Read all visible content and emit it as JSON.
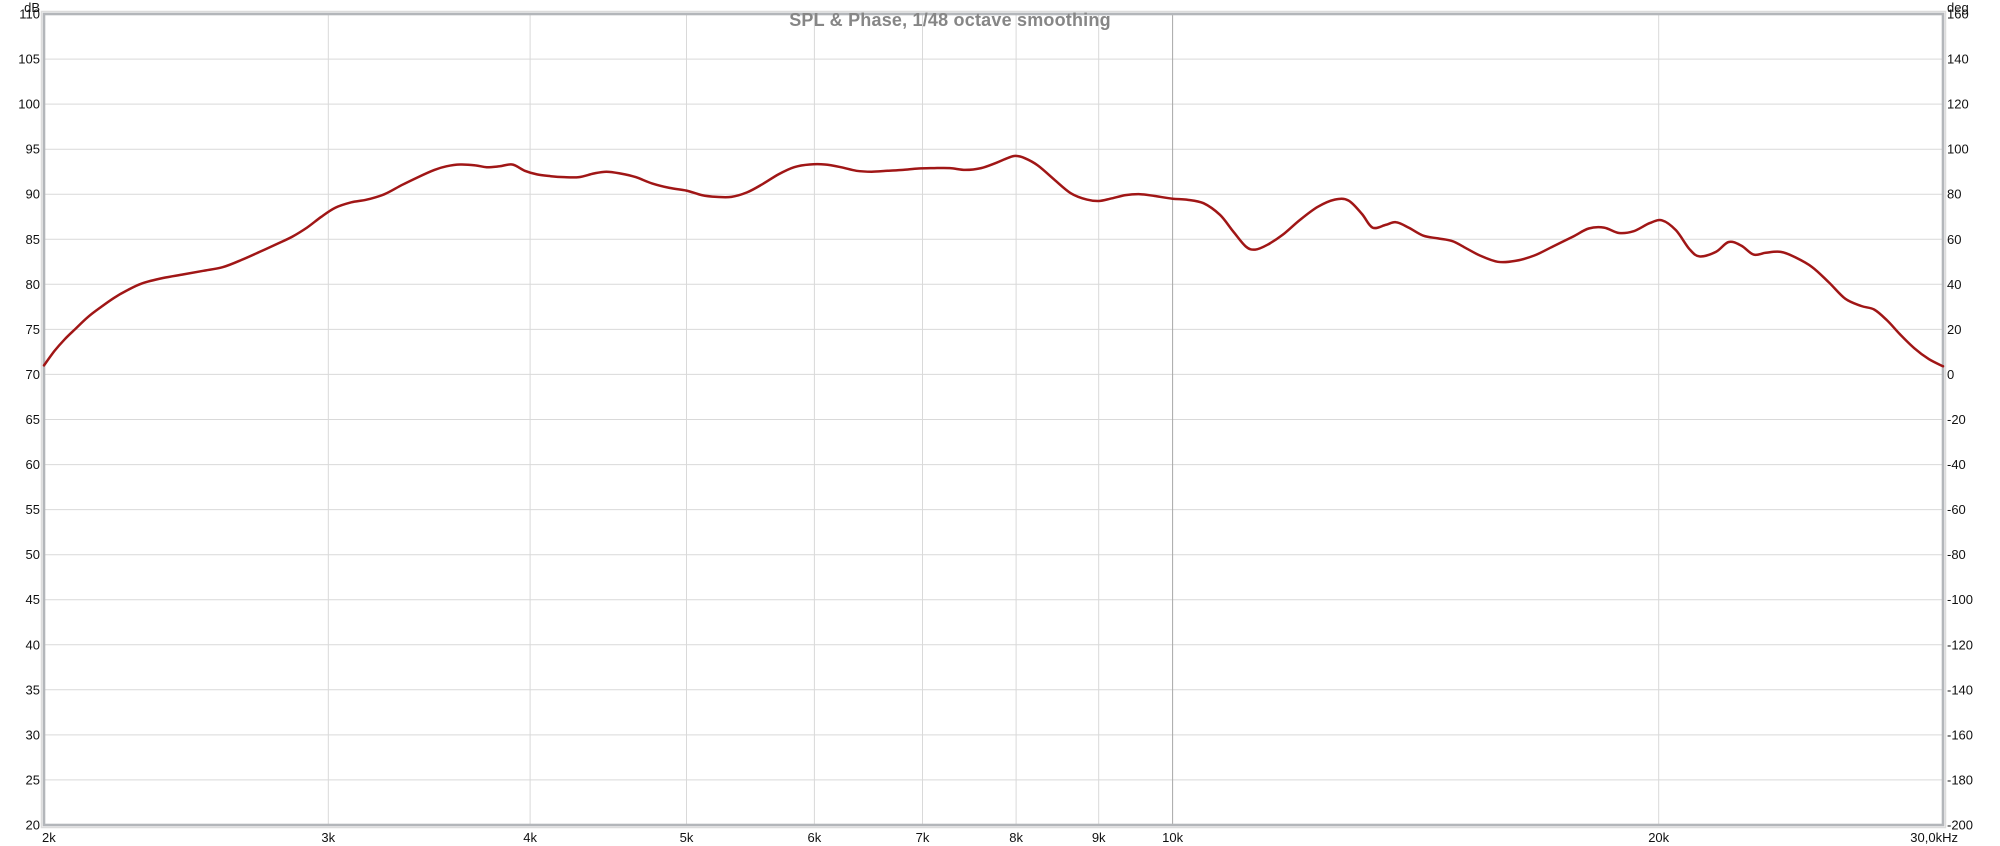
{
  "page": {
    "background": "#ffffff"
  },
  "header": {
    "title": "SPL & Phase, 1/48 octave smoothing"
  },
  "chart_data": {
    "type": "line",
    "title": "SPL & Phase, 1/48 octave smoothing",
    "smoothing": "1/48 octave",
    "grid": {
      "on": true,
      "light": "#d9d9d9",
      "dark": "#a8a8a8",
      "border": "#b3b6ba",
      "border_outer": "#dcdcdc"
    },
    "text_color": "#111111",
    "title_color": "#868686",
    "x_axis": {
      "scale": "log",
      "min": 2000,
      "max": 30000,
      "ticks": [
        {
          "f": 2000,
          "label": "2k",
          "align": "start"
        },
        {
          "f": 3000,
          "label": "3k"
        },
        {
          "f": 4000,
          "label": "4k"
        },
        {
          "f": 5000,
          "label": "5k"
        },
        {
          "f": 6000,
          "label": "6k"
        },
        {
          "f": 7000,
          "label": "7k"
        },
        {
          "f": 8000,
          "label": "8k"
        },
        {
          "f": 9000,
          "label": "9k"
        },
        {
          "f": 10000,
          "label": "10k",
          "emphasis": true
        },
        {
          "f": 20000,
          "label": "20k"
        },
        {
          "f": 30000,
          "label": "30,0kHz",
          "align": "end"
        }
      ]
    },
    "y_left": {
      "unit": "dB",
      "min": 20,
      "max": 110,
      "tick_step": 5,
      "ticks": [
        110,
        105,
        100,
        95,
        90,
        85,
        80,
        75,
        70,
        65,
        60,
        55,
        50,
        45,
        40,
        35,
        30,
        25,
        20
      ]
    },
    "y_right": {
      "unit": "deg",
      "min": -200,
      "max": 160,
      "tick_step": 20,
      "ticks": [
        160,
        140,
        120,
        100,
        80,
        60,
        40,
        20,
        0,
        -20,
        -40,
        -60,
        -80,
        -100,
        -120,
        -140,
        -160,
        -180,
        -200
      ]
    },
    "series": [
      {
        "name": "SPL",
        "color": "#a01616",
        "width": 2.5,
        "points": [
          [
            2000,
            71.0
          ],
          [
            2030,
            72.6
          ],
          [
            2060,
            73.9
          ],
          [
            2090,
            75.0
          ],
          [
            2130,
            76.4
          ],
          [
            2170,
            77.5
          ],
          [
            2210,
            78.5
          ],
          [
            2250,
            79.3
          ],
          [
            2300,
            80.1
          ],
          [
            2370,
            80.7
          ],
          [
            2440,
            81.1
          ],
          [
            2510,
            81.5
          ],
          [
            2580,
            81.9
          ],
          [
            2650,
            82.7
          ],
          [
            2720,
            83.6
          ],
          [
            2790,
            84.5
          ],
          [
            2850,
            85.3
          ],
          [
            2910,
            86.3
          ],
          [
            2970,
            87.5
          ],
          [
            3030,
            88.5
          ],
          [
            3100,
            89.1
          ],
          [
            3170,
            89.4
          ],
          [
            3250,
            90.0
          ],
          [
            3330,
            91.0
          ],
          [
            3410,
            91.9
          ],
          [
            3490,
            92.7
          ],
          [
            3550,
            93.1
          ],
          [
            3620,
            93.3
          ],
          [
            3700,
            93.2
          ],
          [
            3760,
            93.0
          ],
          [
            3830,
            93.1
          ],
          [
            3900,
            93.3
          ],
          [
            3970,
            92.6
          ],
          [
            4040,
            92.2
          ],
          [
            4120,
            92.0
          ],
          [
            4200,
            91.9
          ],
          [
            4290,
            91.9
          ],
          [
            4380,
            92.3
          ],
          [
            4460,
            92.5
          ],
          [
            4550,
            92.3
          ],
          [
            4650,
            91.9
          ],
          [
            4760,
            91.2
          ],
          [
            4880,
            90.7
          ],
          [
            5000,
            90.4
          ],
          [
            5110,
            89.9
          ],
          [
            5220,
            89.7
          ],
          [
            5330,
            89.7
          ],
          [
            5450,
            90.2
          ],
          [
            5570,
            91.1
          ],
          [
            5700,
            92.2
          ],
          [
            5830,
            93.0
          ],
          [
            5960,
            93.3
          ],
          [
            6090,
            93.3
          ],
          [
            6230,
            93.0
          ],
          [
            6370,
            92.6
          ],
          [
            6510,
            92.5
          ],
          [
            6660,
            92.6
          ],
          [
            6810,
            92.7
          ],
          [
            6960,
            92.85
          ],
          [
            7120,
            92.9
          ],
          [
            7280,
            92.9
          ],
          [
            7440,
            92.7
          ],
          [
            7610,
            92.9
          ],
          [
            7780,
            93.5
          ],
          [
            7900,
            94.0
          ],
          [
            7990,
            94.25
          ],
          [
            8100,
            94.0
          ],
          [
            8250,
            93.2
          ],
          [
            8450,
            91.6
          ],
          [
            8650,
            90.1
          ],
          [
            8850,
            89.4
          ],
          [
            9000,
            89.25
          ],
          [
            9150,
            89.5
          ],
          [
            9350,
            89.9
          ],
          [
            9550,
            90.0
          ],
          [
            9750,
            89.8
          ],
          [
            10000,
            89.5
          ],
          [
            10200,
            89.4
          ],
          [
            10450,
            89.0
          ],
          [
            10700,
            87.7
          ],
          [
            10900,
            85.9
          ],
          [
            11100,
            84.2
          ],
          [
            11250,
            83.85
          ],
          [
            11450,
            84.4
          ],
          [
            11700,
            85.5
          ],
          [
            12000,
            87.2
          ],
          [
            12300,
            88.6
          ],
          [
            12600,
            89.4
          ],
          [
            12850,
            89.3
          ],
          [
            13100,
            87.8
          ],
          [
            13300,
            86.3
          ],
          [
            13550,
            86.6
          ],
          [
            13750,
            86.9
          ],
          [
            14000,
            86.3
          ],
          [
            14300,
            85.4
          ],
          [
            14600,
            85.1
          ],
          [
            14900,
            84.8
          ],
          [
            15200,
            84.0
          ],
          [
            15500,
            83.2
          ],
          [
            15900,
            82.5
          ],
          [
            16300,
            82.6
          ],
          [
            16750,
            83.2
          ],
          [
            17200,
            84.2
          ],
          [
            17700,
            85.3
          ],
          [
            18100,
            86.2
          ],
          [
            18500,
            86.3
          ],
          [
            18900,
            85.7
          ],
          [
            19300,
            85.9
          ],
          [
            19750,
            86.8
          ],
          [
            20100,
            87.1
          ],
          [
            20500,
            86.0
          ],
          [
            20900,
            83.9
          ],
          [
            21200,
            83.1
          ],
          [
            21700,
            83.6
          ],
          [
            22100,
            84.7
          ],
          [
            22500,
            84.3
          ],
          [
            22900,
            83.3
          ],
          [
            23300,
            83.5
          ],
          [
            23800,
            83.6
          ],
          [
            24300,
            83.0
          ],
          [
            24900,
            81.9
          ],
          [
            25500,
            80.2
          ],
          [
            26100,
            78.4
          ],
          [
            26700,
            77.6
          ],
          [
            27200,
            77.2
          ],
          [
            27700,
            76.0
          ],
          [
            28200,
            74.5
          ],
          [
            28800,
            72.9
          ],
          [
            29400,
            71.7
          ],
          [
            30000,
            70.9
          ]
        ]
      }
    ]
  }
}
